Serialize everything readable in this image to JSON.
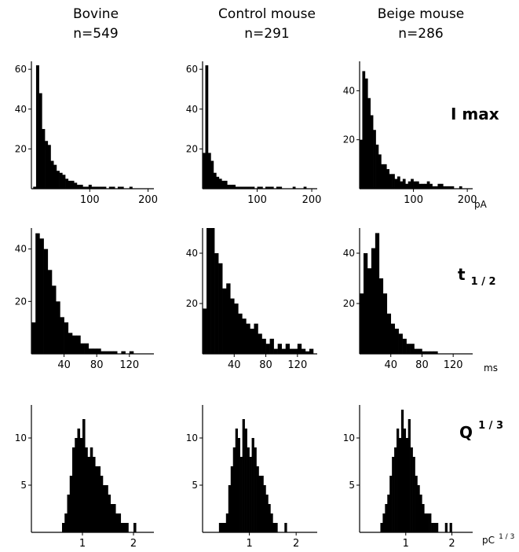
{
  "columns": [
    {
      "title": "Bovine",
      "n": "n=549"
    },
    {
      "title": "Control mouse",
      "n": "n=291"
    },
    {
      "title": "Beige mouse",
      "n": "n=286"
    }
  ],
  "rows": [
    {
      "label": "I max",
      "unit": "pA"
    },
    {
      "label_main": "t",
      "label_sub": "1 / 2",
      "unit": "ms"
    },
    {
      "label_main": "Q",
      "label_sup": "1 / 3",
      "unit_main": "pC",
      "unit_sup": "1 / 3"
    }
  ],
  "chart_data": [
    {
      "type": "bar",
      "row": 0,
      "col": 0,
      "xlim": [
        0,
        210
      ],
      "ylim": [
        0,
        64
      ],
      "xticks": [
        "100",
        "200"
      ],
      "xtick_values": [
        100,
        200
      ],
      "yticks": [
        "20",
        "40",
        "60"
      ],
      "ytick_values": [
        20,
        40,
        60
      ],
      "bin_start": 3,
      "bin_width": 5,
      "values": [
        1,
        62,
        48,
        30,
        24,
        22,
        14,
        12,
        9,
        8,
        7,
        5,
        4,
        4,
        3,
        2,
        2,
        1,
        1,
        2,
        1,
        1,
        1,
        1,
        1,
        0,
        1,
        1,
        0,
        1,
        1,
        0,
        0,
        1,
        0,
        0,
        0,
        0,
        0,
        0,
        0
      ]
    },
    {
      "type": "bar",
      "row": 0,
      "col": 1,
      "xlim": [
        0,
        210
      ],
      "ylim": [
        0,
        64
      ],
      "xticks": [
        "100",
        "200"
      ],
      "xtick_values": [
        100,
        200
      ],
      "yticks": [
        "20",
        "40",
        "60"
      ],
      "ytick_values": [
        20,
        40,
        60
      ],
      "bin_start": 0,
      "bin_width": 5,
      "values": [
        18,
        62,
        18,
        14,
        8,
        6,
        5,
        4,
        4,
        2,
        2,
        2,
        1,
        1,
        1,
        1,
        1,
        1,
        1,
        0,
        1,
        1,
        0,
        1,
        1,
        1,
        0,
        1,
        1,
        0,
        0,
        0,
        0,
        1,
        0,
        0,
        0,
        1,
        0,
        0,
        0
      ]
    },
    {
      "type": "bar",
      "row": 0,
      "col": 2,
      "xlim": [
        0,
        210
      ],
      "ylim": [
        0,
        52
      ],
      "xticks": [
        "100",
        "200"
      ],
      "xtick_values": [
        100,
        200
      ],
      "yticks": [
        "20",
        "40"
      ],
      "ytick_values": [
        20,
        40
      ],
      "bin_start": 0,
      "bin_width": 5,
      "values": [
        20,
        48,
        45,
        37,
        30,
        24,
        18,
        14,
        10,
        10,
        8,
        6,
        6,
        4,
        5,
        3,
        4,
        2,
        3,
        4,
        3,
        3,
        2,
        2,
        2,
        3,
        2,
        1,
        1,
        2,
        2,
        1,
        1,
        1,
        1,
        0,
        0,
        1,
        0,
        0,
        0
      ]
    },
    {
      "type": "bar",
      "row": 1,
      "col": 0,
      "xlim": [
        0,
        150
      ],
      "ylim": [
        0,
        48
      ],
      "xticks": [
        "40",
        "80",
        "120"
      ],
      "xtick_values": [
        40,
        80,
        120
      ],
      "yticks": [
        "20",
        "40"
      ],
      "ytick_values": [
        20,
        40
      ],
      "bin_start": 0,
      "bin_width": 5,
      "values": [
        12,
        46,
        44,
        40,
        32,
        26,
        20,
        14,
        12,
        8,
        7,
        7,
        4,
        4,
        2,
        2,
        2,
        1,
        1,
        1,
        1,
        0,
        1,
        0,
        1,
        0,
        0,
        0,
        0,
        0
      ]
    },
    {
      "type": "bar",
      "row": 1,
      "col": 1,
      "xlim": [
        0,
        145
      ],
      "ylim": [
        0,
        50
      ],
      "xticks": [
        "40",
        "80",
        "120"
      ],
      "xtick_values": [
        40,
        80,
        120
      ],
      "yticks": [
        "20",
        "40"
      ],
      "ytick_values": [
        20,
        40
      ],
      "bin_start": 0,
      "bin_width": 5,
      "values": [
        18,
        50,
        50,
        40,
        36,
        26,
        28,
        22,
        20,
        16,
        14,
        12,
        10,
        12,
        8,
        6,
        4,
        6,
        2,
        4,
        2,
        4,
        2,
        2,
        4,
        2,
        1,
        2,
        0
      ]
    },
    {
      "type": "bar",
      "row": 1,
      "col": 2,
      "xlim": [
        0,
        145
      ],
      "ylim": [
        0,
        50
      ],
      "xticks": [
        "40",
        "80",
        "120"
      ],
      "xtick_values": [
        40,
        80,
        120
      ],
      "yticks": [
        "20",
        "40"
      ],
      "ytick_values": [
        20,
        40
      ],
      "bin_start": 0,
      "bin_width": 5,
      "values": [
        24,
        40,
        34,
        42,
        48,
        30,
        24,
        16,
        12,
        10,
        8,
        6,
        4,
        4,
        2,
        2,
        1,
        1,
        1,
        1,
        0,
        0,
        0,
        0,
        0,
        0,
        0,
        0,
        0
      ]
    },
    {
      "type": "bar",
      "row": 2,
      "col": 0,
      "xlim": [
        0,
        2.4
      ],
      "ylim": [
        0,
        13.5
      ],
      "xticks": [
        "1",
        "2"
      ],
      "xtick_values": [
        1,
        2
      ],
      "yticks": [
        "5",
        "10"
      ],
      "ytick_values": [
        5,
        10
      ],
      "bin_start": 0.4,
      "bin_width": 0.05,
      "values": [
        0,
        0,
        0,
        0,
        1,
        2,
        4,
        6,
        9,
        10,
        11,
        10,
        12,
        9,
        8,
        9,
        8,
        7,
        7,
        6,
        5,
        5,
        4,
        3,
        3,
        2,
        2,
        1,
        1,
        1,
        0,
        0,
        1,
        0,
        0,
        0,
        0
      ]
    },
    {
      "type": "bar",
      "row": 2,
      "col": 1,
      "xlim": [
        0,
        2.45
      ],
      "ylim": [
        0,
        13.5
      ],
      "xticks": [
        "1",
        "2"
      ],
      "xtick_values": [
        1,
        2
      ],
      "yticks": [
        "5",
        "10"
      ],
      "ytick_values": [
        5,
        10
      ],
      "bin_start": 0.3,
      "bin_width": 0.05,
      "values": [
        0,
        1,
        1,
        1,
        2,
        5,
        7,
        9,
        11,
        10,
        8,
        12,
        11,
        9,
        8,
        10,
        9,
        7,
        6,
        6,
        5,
        4,
        3,
        2,
        1,
        1,
        0,
        0,
        0,
        1,
        0
      ]
    },
    {
      "type": "bar",
      "row": 2,
      "col": 2,
      "xlim": [
        0,
        2.45
      ],
      "ylim": [
        0,
        13.5
      ],
      "xticks": [
        "1",
        "2"
      ],
      "xtick_values": [
        1,
        2
      ],
      "yticks": [
        "5",
        "10"
      ],
      "ytick_values": [
        5,
        10
      ],
      "bin_start": 0.45,
      "bin_width": 0.05,
      "values": [
        1,
        2,
        3,
        4,
        6,
        8,
        9,
        11,
        10,
        13,
        11,
        10,
        12,
        9,
        8,
        6,
        5,
        4,
        3,
        2,
        2,
        2,
        1,
        1,
        1,
        0,
        0,
        0,
        1,
        0,
        1,
        0,
        0,
        0,
        0
      ]
    }
  ]
}
